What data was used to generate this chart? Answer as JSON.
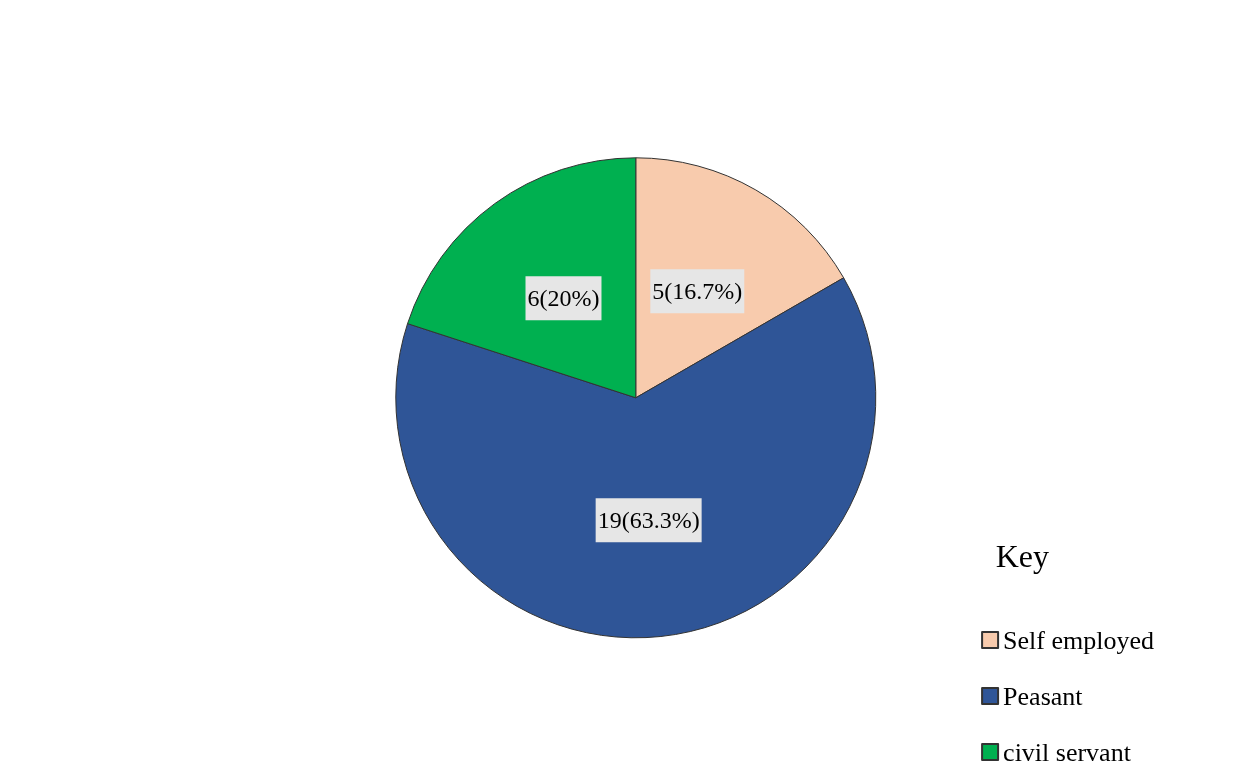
{
  "chart_data": {
    "type": "pie",
    "categories": [
      "Self employed",
      "Peasant",
      "civil servant"
    ],
    "values": [
      5,
      19,
      6
    ],
    "value_labels": [
      "5(16.7%)",
      "19(63.3%)",
      "6(20%)"
    ],
    "colors": [
      "#f8cbad",
      "#2f5597",
      "#00b050"
    ],
    "legend": "bottom right",
    "legend_title": "Key"
  }
}
